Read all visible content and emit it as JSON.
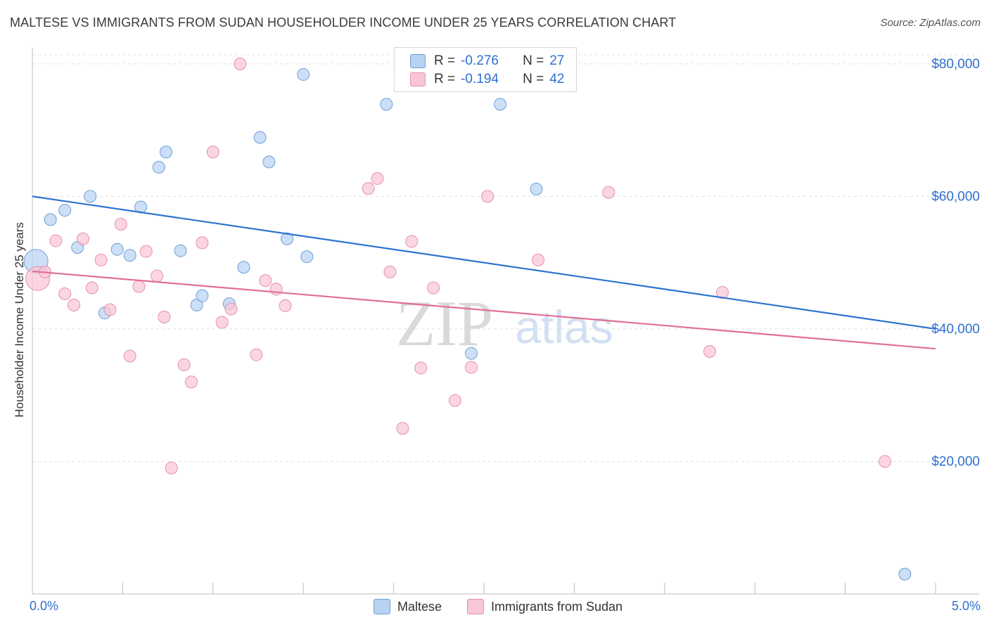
{
  "title": "MALTESE VS IMMIGRANTS FROM SUDAN HOUSEHOLDER INCOME UNDER 25 YEARS CORRELATION CHART",
  "source": "Source: ZipAtlas.com",
  "watermark": {
    "zip": "ZIP",
    "atlas": "atlas"
  },
  "legend_top": {
    "rows": [
      {
        "r_label": "R =",
        "r_value": "-0.276",
        "n_label": "N =",
        "n_value": "27",
        "color": "#b8d2f3",
        "border": "#6e9fd8"
      },
      {
        "r_label": "R =",
        "r_value": "-0.194",
        "n_label": "N =",
        "n_value": "42",
        "color": "#f9c6d6",
        "border": "#e590ad"
      }
    ]
  },
  "legend_bottom": {
    "items": [
      {
        "label": "Maltese",
        "color": "#b8d2f3"
      },
      {
        "label": "Immigrants from Sudan",
        "color": "#f9c6d6"
      }
    ]
  },
  "chart_data": {
    "type": "scatter",
    "title": "MALTESE VS IMMIGRANTS FROM SUDAN HOUSEHOLDER INCOME UNDER 25 YEARS CORRELATION CHART",
    "xlabel": "",
    "ylabel": "Householder Income Under 25 years",
    "xlim": [
      0,
      5
    ],
    "ylim": [
      0,
      82000
    ],
    "x_tick_labels": [
      "0.0%",
      "5.0%"
    ],
    "y_ticks": [
      20000,
      40000,
      60000,
      80000
    ],
    "y_tick_labels": [
      "$20,000",
      "$40,000",
      "$60,000",
      "$80,000"
    ],
    "grid": "horizontal dashed",
    "series": [
      {
        "name": "Maltese",
        "color": "#6e9fd8",
        "fill": "#b8d2f3",
        "trend": {
          "x": [
            0,
            5
          ],
          "y": [
            60000,
            40000
          ],
          "color": "#2e74d0"
        },
        "points": [
          {
            "x": 0.02,
            "y": 50200,
            "big": true
          },
          {
            "x": 0.1,
            "y": 56500
          },
          {
            "x": 0.18,
            "y": 57900
          },
          {
            "x": 0.25,
            "y": 52300
          },
          {
            "x": 0.32,
            "y": 60000
          },
          {
            "x": 0.4,
            "y": 42400
          },
          {
            "x": 0.47,
            "y": 52000
          },
          {
            "x": 0.54,
            "y": 51100
          },
          {
            "x": 0.6,
            "y": 58400
          },
          {
            "x": 0.7,
            "y": 64400
          },
          {
            "x": 0.74,
            "y": 66700
          },
          {
            "x": 0.82,
            "y": 51800
          },
          {
            "x": 0.91,
            "y": 43600
          },
          {
            "x": 0.94,
            "y": 45000
          },
          {
            "x": 1.09,
            "y": 43800
          },
          {
            "x": 1.17,
            "y": 49300
          },
          {
            "x": 1.26,
            "y": 68900
          },
          {
            "x": 1.31,
            "y": 65200
          },
          {
            "x": 1.41,
            "y": 53600
          },
          {
            "x": 1.5,
            "y": 78400
          },
          {
            "x": 1.52,
            "y": 50900
          },
          {
            "x": 1.96,
            "y": 73900
          },
          {
            "x": 2.34,
            "y": 78500
          },
          {
            "x": 2.43,
            "y": 36300
          },
          {
            "x": 2.59,
            "y": 73900
          },
          {
            "x": 2.79,
            "y": 61100
          },
          {
            "x": 4.83,
            "y": 3000
          }
        ]
      },
      {
        "name": "Immigrants from Sudan",
        "color": "#e590ad",
        "fill": "#f9c6d6",
        "trend": {
          "x": [
            0,
            5
          ],
          "y": [
            48700,
            37000
          ],
          "color": "#e06f96"
        },
        "points": [
          {
            "x": 0.03,
            "y": 47600,
            "big": true
          },
          {
            "x": 0.07,
            "y": 48600
          },
          {
            "x": 0.13,
            "y": 53300
          },
          {
            "x": 0.18,
            "y": 45300
          },
          {
            "x": 0.23,
            "y": 43600
          },
          {
            "x": 0.28,
            "y": 53600
          },
          {
            "x": 0.33,
            "y": 46200
          },
          {
            "x": 0.38,
            "y": 50400
          },
          {
            "x": 0.43,
            "y": 42900
          },
          {
            "x": 0.49,
            "y": 55800
          },
          {
            "x": 0.54,
            "y": 35900
          },
          {
            "x": 0.59,
            "y": 46400
          },
          {
            "x": 0.63,
            "y": 51700
          },
          {
            "x": 0.69,
            "y": 48000
          },
          {
            "x": 0.73,
            "y": 41800
          },
          {
            "x": 0.77,
            "y": 19000
          },
          {
            "x": 0.84,
            "y": 34600
          },
          {
            "x": 0.88,
            "y": 32000
          },
          {
            "x": 0.94,
            "y": 53000
          },
          {
            "x": 1.0,
            "y": 66700
          },
          {
            "x": 1.05,
            "y": 41000
          },
          {
            "x": 1.1,
            "y": 43000
          },
          {
            "x": 1.15,
            "y": 80000
          },
          {
            "x": 1.24,
            "y": 36100
          },
          {
            "x": 1.29,
            "y": 47300
          },
          {
            "x": 1.35,
            "y": 46000
          },
          {
            "x": 1.4,
            "y": 43500
          },
          {
            "x": 1.86,
            "y": 61200
          },
          {
            "x": 1.91,
            "y": 62700
          },
          {
            "x": 1.98,
            "y": 48600
          },
          {
            "x": 2.05,
            "y": 25000
          },
          {
            "x": 2.1,
            "y": 53200
          },
          {
            "x": 2.15,
            "y": 34100
          },
          {
            "x": 2.22,
            "y": 46200
          },
          {
            "x": 2.34,
            "y": 29200
          },
          {
            "x": 2.43,
            "y": 34200
          },
          {
            "x": 2.52,
            "y": 60000
          },
          {
            "x": 2.8,
            "y": 50400
          },
          {
            "x": 3.19,
            "y": 60600
          },
          {
            "x": 3.75,
            "y": 36600
          },
          {
            "x": 3.82,
            "y": 45500
          },
          {
            "x": 4.72,
            "y": 20000
          }
        ]
      }
    ]
  }
}
